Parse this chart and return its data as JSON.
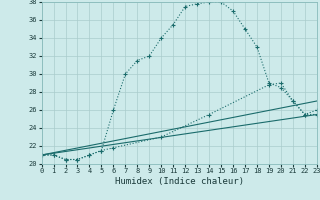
{
  "xlabel": "Humidex (Indice chaleur)",
  "background_color": "#cdeaea",
  "grid_color": "#aacccc",
  "line_color": "#1a6b6b",
  "x_min": 0,
  "x_max": 23,
  "y_min": 20,
  "y_max": 38,
  "curve1_x": [
    0,
    1,
    2,
    3,
    4,
    5,
    6,
    7,
    8,
    9,
    10,
    11,
    12,
    13,
    14,
    15,
    16,
    17,
    18,
    19,
    20,
    21,
    22,
    23
  ],
  "curve1_y": [
    21.0,
    21.0,
    20.5,
    20.5,
    21.0,
    21.5,
    26.0,
    30.0,
    31.5,
    32.0,
    34.0,
    35.5,
    37.5,
    37.8,
    38.0,
    38.0,
    37.0,
    35.0,
    33.0,
    29.0,
    28.5,
    27.0,
    25.5,
    26.0
  ],
  "curve2_x": [
    0,
    1,
    2,
    3,
    4,
    5,
    6,
    10,
    14,
    19,
    20,
    21,
    22,
    23
  ],
  "curve2_y": [
    21.0,
    21.0,
    20.5,
    20.5,
    21.0,
    21.5,
    21.8,
    23.0,
    25.5,
    28.8,
    29.0,
    27.0,
    25.5,
    25.5
  ],
  "curve3_x": [
    0,
    23
  ],
  "curve3_y": [
    21.0,
    27.0
  ],
  "curve4_x": [
    0,
    23
  ],
  "curve4_y": [
    21.0,
    25.5
  ]
}
